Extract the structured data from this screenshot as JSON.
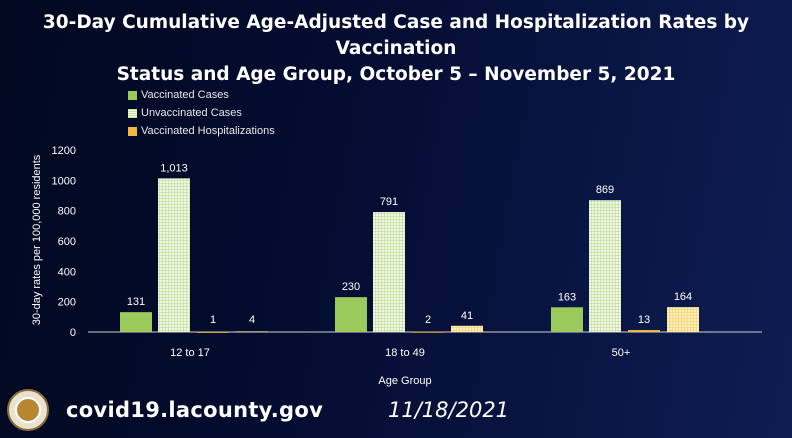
{
  "title_line1": "30-Day Cumulative Age-Adjusted Case and Hospitalization Rates by Vaccination",
  "title_line2": "Status and Age Group, October 5 – November 5, 2021",
  "footer": {
    "url": "covid19.lacounty.gov",
    "date": "11/18/2021",
    "logo": "County of Los Angeles seal"
  },
  "chart_data": {
    "type": "bar",
    "title": "30-Day Cumulative Age-Adjusted Case and Hospitalization Rates by Vaccination Status and Age Group, October 5 – November 5, 2021",
    "xlabel": "Age Group",
    "ylabel": "30-day rates per 100,000 residents",
    "ylim": [
      0,
      1200
    ],
    "yticks": [
      0,
      200,
      400,
      600,
      800,
      1000,
      1200
    ],
    "grid": false,
    "legend_placement": "top-left",
    "categories": [
      "12 to 17",
      "18 to 49",
      "50+"
    ],
    "series": [
      {
        "name": "Vaccinated Cases",
        "values": [
          131,
          230,
          163
        ],
        "labels": [
          "131",
          "230",
          "163"
        ],
        "color": "#9bc95b",
        "pattern": "solid"
      },
      {
        "name": "Unvaccinated Cases",
        "values": [
          1013,
          791,
          869
        ],
        "labels": [
          "1,013",
          "791",
          "869"
        ],
        "color": "#c9e3a3",
        "pattern": "grid"
      },
      {
        "name": "Vaccinated Hospitalizations",
        "values": [
          1,
          2,
          13
        ],
        "labels": [
          "1",
          "2",
          "13"
        ],
        "color": "#f2b942",
        "pattern": "solid"
      },
      {
        "values": [
          4,
          41,
          164
        ],
        "labels": [
          "4",
          "41",
          "164"
        ],
        "color": "#f6dc85",
        "pattern": "grid"
      }
    ]
  }
}
